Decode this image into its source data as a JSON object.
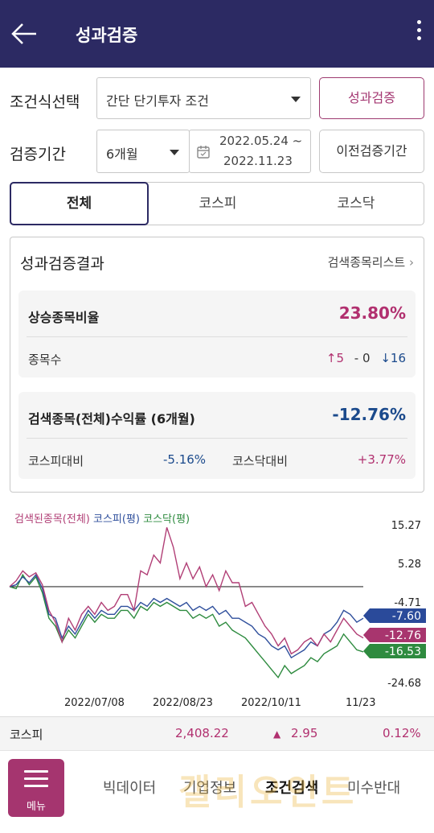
{
  "header": {
    "title": "성과검증"
  },
  "condition": {
    "label": "조건식선택",
    "selected": "간단 단기투자 조건",
    "verify_button": "성과검증"
  },
  "period": {
    "label": "검증기간",
    "selected": "6개월",
    "date_start": "2022.05.24 ~",
    "date_end": "2022.11.23",
    "prev_button": "이전검증기간"
  },
  "tabs": [
    "전체",
    "코스피",
    "코스닥"
  ],
  "result": {
    "title": "성과검증결과",
    "list_link": "검색종목리스트",
    "rise_ratio_label": "상승종목비율",
    "rise_ratio_value": "23.80%",
    "count_label": "종목수",
    "count_up": "5",
    "count_flat": "0",
    "count_down": "16",
    "return_label": "검색종목(전체)수익률 (6개월)",
    "return_value": "-12.76%",
    "kospi_label": "코스피대비",
    "kospi_value": "-5.16%",
    "kosdaq_label": "코스닥대비",
    "kosdaq_value": "+3.77%"
  },
  "chart_data": {
    "type": "line",
    "legend": [
      {
        "name": "검색된종목(전체)",
        "color": "#b13f76"
      },
      {
        "name": "코스피(평)",
        "color": "#2f4f9c"
      },
      {
        "name": "코스닥(평)",
        "color": "#2e8b3f"
      }
    ],
    "ylim": [
      -24.68,
      15.27
    ],
    "yticks": [
      "15.27",
      "5.28",
      "-4.71",
      "-24.68"
    ],
    "xticks": [
      "2022/07/08",
      "2022/08/23",
      "2022/10/11",
      "11/23"
    ],
    "baseline": 0,
    "end_labels": [
      {
        "value": -7.6,
        "label": "-7.60",
        "color": "#2a4a9a"
      },
      {
        "value": -12.76,
        "label": "-12.76",
        "color": "#a8356e"
      },
      {
        "value": -16.53,
        "label": "-16.53",
        "color": "#2e8b3f"
      }
    ],
    "series": [
      {
        "name": "검색된종목(전체)",
        "color": "#b13f76",
        "values": [
          0,
          1.5,
          4.0,
          2.5,
          3.5,
          0.5,
          -6,
          -9,
          -14,
          -8,
          -11,
          -7,
          -5,
          -7,
          -4,
          -6,
          -5,
          -2,
          -2,
          -6,
          4,
          3,
          8,
          6,
          15,
          10,
          2,
          6,
          2,
          5,
          0,
          3,
          -1,
          4,
          1,
          1,
          -5,
          -4,
          -7,
          -10,
          -12,
          -15,
          -13,
          -17,
          -16,
          -14,
          -13,
          -15,
          -12,
          -14,
          -11,
          -8,
          -10,
          -12,
          -13
        ]
      },
      {
        "name": "코스피(평)",
        "color": "#2f4f9c",
        "values": [
          0,
          0.5,
          2.5,
          1.0,
          3.0,
          -0.5,
          -7,
          -8,
          -13,
          -10,
          -12,
          -9,
          -6,
          -8,
          -6,
          -7,
          -7,
          -5,
          -5,
          -6,
          -4,
          -5,
          -3,
          -4,
          -3,
          -4,
          -5,
          -4,
          -6,
          -5,
          -6,
          -5,
          -7,
          -6,
          -8,
          -8,
          -9,
          -10,
          -12,
          -13,
          -15,
          -16,
          -15,
          -18,
          -17,
          -16,
          -14,
          -15,
          -12,
          -11,
          -9,
          -6,
          -7,
          -9,
          -8
        ]
      },
      {
        "name": "코스닥(평)",
        "color": "#2e8b3f",
        "values": [
          0,
          -0.5,
          3.0,
          0.5,
          2.5,
          -1.5,
          -8,
          -10,
          -14,
          -11,
          -13,
          -10,
          -7,
          -9,
          -7,
          -8,
          -8,
          -6,
          -6,
          -8,
          -5,
          -6,
          -4,
          -5,
          -4,
          -5,
          -6,
          -6,
          -8,
          -7,
          -8,
          -7,
          -10,
          -9,
          -11,
          -12,
          -13,
          -15,
          -17,
          -19,
          -21,
          -23,
          -20,
          -22,
          -21,
          -20,
          -18,
          -19,
          -17,
          -16,
          -15,
          -12,
          -14,
          -16,
          -16.5
        ]
      }
    ]
  },
  "ticker": {
    "name": "코스피",
    "price": "2,408.22",
    "change": "2.95",
    "rate": "0.12%"
  },
  "nav": {
    "menu_label": "메뉴",
    "items": [
      "빅데이터",
      "기업정보",
      "조건검색",
      "미수반대"
    ]
  },
  "watermark": "갤리오인트"
}
